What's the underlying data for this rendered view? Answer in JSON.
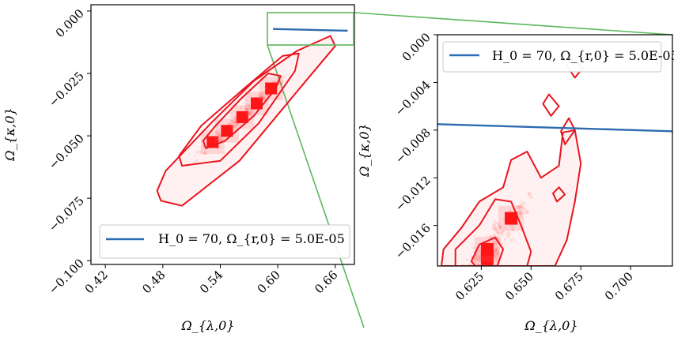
{
  "chart_data": [
    {
      "type": "scatter",
      "panel": "main",
      "xlabel": "Ω_{λ,0}",
      "ylabel": "Ω_{κ,0}",
      "xlim": [
        0.405,
        0.68
      ],
      "ylim": [
        -0.1015,
        0.0025
      ],
      "xticks": [
        "0.42",
        "0.48",
        "0.54",
        "0.60",
        "0.66"
      ],
      "yticks": [
        "0.000",
        "−0.025",
        "−0.050",
        "−0.075",
        "−0.100"
      ],
      "legend": {
        "label": "H_0 = 70, Ω_{r,0} = 5.0E-05",
        "placement": "lower-right"
      },
      "series": [
        {
          "name": "H_0 = 70, Ω_{r,0} = 5.0E-05",
          "style": "line",
          "color": "#2e6bb0",
          "x": [
            0.595,
            0.673
          ],
          "y": [
            -0.0072,
            -0.0079
          ]
        }
      ],
      "density_points": [
        {
          "x": 0.532,
          "y": -0.0525
        },
        {
          "x": 0.547,
          "y": -0.048
        },
        {
          "x": 0.563,
          "y": -0.0425
        },
        {
          "x": 0.578,
          "y": -0.037
        },
        {
          "x": 0.593,
          "y": -0.031
        }
      ],
      "contours": [
        {
          "level": "inner",
          "points": [
            [
              0.525,
              -0.055
            ],
            [
              0.545,
              -0.052
            ],
            [
              0.575,
              -0.042
            ],
            [
              0.598,
              -0.031
            ],
            [
              0.603,
              -0.026
            ],
            [
              0.59,
              -0.025
            ],
            [
              0.562,
              -0.035
            ],
            [
              0.535,
              -0.046
            ],
            [
              0.522,
              -0.052
            ]
          ]
        },
        {
          "level": "middle",
          "points": [
            [
              0.5,
              -0.062
            ],
            [
              0.54,
              -0.06
            ],
            [
              0.58,
              -0.045
            ],
            [
              0.618,
              -0.024
            ],
            [
              0.622,
              -0.017
            ],
            [
              0.605,
              -0.018
            ],
            [
              0.565,
              -0.031
            ],
            [
              0.52,
              -0.046
            ],
            [
              0.497,
              -0.058
            ]
          ]
        },
        {
          "level": "outer",
          "points": [
            [
              0.478,
              -0.076
            ],
            [
              0.5,
              -0.078
            ],
            [
              0.56,
              -0.06
            ],
            [
              0.625,
              -0.03
            ],
            [
              0.66,
              -0.014
            ],
            [
              0.655,
              -0.01
            ],
            [
              0.62,
              -0.016
            ],
            [
              0.575,
              -0.028
            ],
            [
              0.53,
              -0.045
            ],
            [
              0.483,
              -0.064
            ],
            [
              0.474,
              -0.072
            ]
          ]
        }
      ]
    },
    {
      "type": "scatter",
      "panel": "zoom",
      "xlabel": "Ω_{λ,0}",
      "ylabel": "Ω_{κ,0}",
      "xlim": [
        0.603,
        0.721
      ],
      "ylim": [
        -0.0194,
        0.0
      ],
      "xticks": [
        "0.625",
        "0.650",
        "0.675",
        "0.700"
      ],
      "yticks": [
        "0.000",
        "−0.004",
        "−0.008",
        "−0.012",
        "−0.016"
      ],
      "legend": {
        "label": "H_0 = 70, Ω_{r,0} = 5.0E-05",
        "placement": "upper-left"
      },
      "series": [
        {
          "name": "H_0 = 70, Ω_{r,0} = 5.0E-05",
          "style": "line",
          "color": "#2e6bb0",
          "x": [
            0.603,
            0.721
          ],
          "y": [
            -0.0075,
            -0.0081
          ]
        }
      ],
      "density_points": [
        {
          "x": 0.628,
          "y": -0.0188
        },
        {
          "x": 0.628,
          "y": -0.018
        },
        {
          "x": 0.64,
          "y": -0.0154
        }
      ],
      "contours": [
        {
          "level": "inner",
          "points": [
            [
              0.622,
              -0.0194
            ],
            [
              0.633,
              -0.0194
            ],
            [
              0.636,
              -0.018
            ],
            [
              0.632,
              -0.017
            ],
            [
              0.624,
              -0.0176
            ],
            [
              0.62,
              -0.019
            ]
          ]
        },
        {
          "level": "middle",
          "points": [
            [
              0.612,
              -0.0194
            ],
            [
              0.648,
              -0.0194
            ],
            [
              0.65,
              -0.0182
            ],
            [
              0.645,
              -0.016
            ],
            [
              0.64,
              -0.014
            ],
            [
              0.632,
              -0.0138
            ],
            [
              0.624,
              -0.016
            ],
            [
              0.612,
              -0.018
            ]
          ]
        },
        {
          "level": "outer",
          "points": [
            [
              0.605,
              -0.0194
            ],
            [
              0.662,
              -0.0194
            ],
            [
              0.668,
              -0.0172
            ],
            [
              0.672,
              -0.014
            ],
            [
              0.675,
              -0.0108
            ],
            [
              0.672,
              -0.008
            ],
            [
              0.666,
              -0.0082
            ],
            [
              0.664,
              -0.011
            ],
            [
              0.655,
              -0.012
            ],
            [
              0.648,
              -0.0098
            ],
            [
              0.64,
              -0.0105
            ],
            [
              0.636,
              -0.0128
            ],
            [
              0.624,
              -0.014
            ],
            [
              0.615,
              -0.0162
            ],
            [
              0.606,
              -0.018
            ]
          ]
        },
        {
          "level": "island",
          "points": [
            [
              0.667,
              -0.0092
            ],
            [
              0.672,
              -0.008
            ],
            [
              0.669,
              -0.007
            ],
            [
              0.665,
              -0.0081
            ]
          ]
        },
        {
          "level": "island",
          "points": [
            [
              0.659,
              -0.005
            ],
            [
              0.664,
              -0.006
            ],
            [
              0.66,
              -0.0068
            ],
            [
              0.656,
              -0.0058
            ]
          ]
        },
        {
          "level": "island",
          "points": [
            [
              0.67,
              -0.002
            ],
            [
              0.676,
              -0.0028
            ],
            [
              0.672,
              -0.0036
            ],
            [
              0.668,
              -0.0026
            ]
          ]
        },
        {
          "level": "island",
          "points": [
            [
              0.664,
              -0.0128
            ],
            [
              0.667,
              -0.0134
            ],
            [
              0.663,
              -0.014
            ],
            [
              0.661,
              -0.0133
            ]
          ]
        }
      ]
    }
  ]
}
